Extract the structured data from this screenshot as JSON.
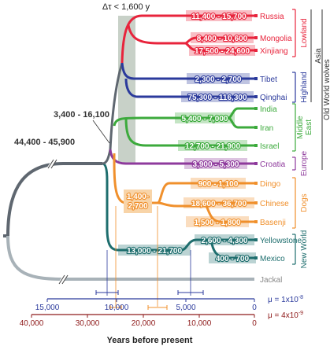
{
  "delta_tau": "Δτ < 1,600 y",
  "node_ranges": {
    "root": "44,400 - 45,900",
    "ow": "3,400 - 16,100",
    "dogs": "1,400-\n2,700"
  },
  "leaves": [
    {
      "key": "russia",
      "label": "Russia",
      "range": "11,400 - 15,700",
      "color": "#e8243c"
    },
    {
      "key": "mongolia",
      "label": "Mongolia",
      "range": "8,400 - 10,600",
      "color": "#e8243c"
    },
    {
      "key": "xinjiang",
      "label": "Xinjiang",
      "range": "17,500 - 24,600",
      "color": "#e8243c"
    },
    {
      "key": "tibet",
      "label": "Tibet",
      "range": "2,300 - 2,700",
      "color": "#2b3a9c"
    },
    {
      "key": "qinghai",
      "label": "Qinghai",
      "range": "75,300 - 116,300",
      "color": "#2b3a9c"
    },
    {
      "key": "india",
      "label": "India",
      "range": "",
      "color": "#3caa3c"
    },
    {
      "key": "iran",
      "label": "Iran",
      "range": "",
      "color": "#3caa3c"
    },
    {
      "key": "israel",
      "label": "Israel",
      "range": "12,700 - 21,900",
      "color": "#3caa3c"
    },
    {
      "key": "croatia",
      "label": "Croatia",
      "range": "3,900 - 5,300",
      "color": "#8e3a9c"
    },
    {
      "key": "dingo",
      "label": "Dingo",
      "range": "900 - 1,100",
      "color": "#f0902c"
    },
    {
      "key": "chinese",
      "label": "Chinese",
      "range": "18,600 - 36,700",
      "color": "#f0902c"
    },
    {
      "key": "basenji",
      "label": "Basenji",
      "range": "1,500 - 1,800",
      "color": "#f0902c"
    },
    {
      "key": "yellowstone",
      "label": "Yellowstone",
      "range": "2,600 - 4,300",
      "color": "#1e6e6e"
    },
    {
      "key": "mexico",
      "label": "Mexico",
      "range": "400 - 700",
      "color": "#1e6e6e"
    },
    {
      "key": "jackal",
      "label": "Jackal",
      "range": "",
      "color": "#a0a8b0"
    }
  ],
  "extra_ranges": {
    "india_iran": "5,400 - 7,000",
    "nw": "13,000 - 21,700"
  },
  "groups": {
    "lowland": "Lowland",
    "highland": "Highland",
    "asia": "Asia",
    "middle_east": "Middle\nEast",
    "europe": "Europe",
    "old_world": "Old World wolves",
    "dogs": "Dogs",
    "new_world": "New World"
  },
  "axis1": {
    "ticks": [
      "15,000",
      "10,000",
      "5,000",
      "0"
    ],
    "mu": "μ = 1x10",
    "exp": "-8"
  },
  "axis2": {
    "ticks": [
      "40,000",
      "30,000",
      "20,000",
      "10,000",
      "0"
    ],
    "mu": "μ = 4x10",
    "exp": "-9"
  },
  "xlabel": "Years before present",
  "colors": {
    "red": "#e8243c",
    "blue": "#2b3a9c",
    "green": "#3caa3c",
    "purple": "#8e3a9c",
    "orange": "#f0902c",
    "teal": "#1e6e6e",
    "gray": "#5f6770",
    "light_gray": "#a8b2b8",
    "box": "#9aab9a"
  }
}
